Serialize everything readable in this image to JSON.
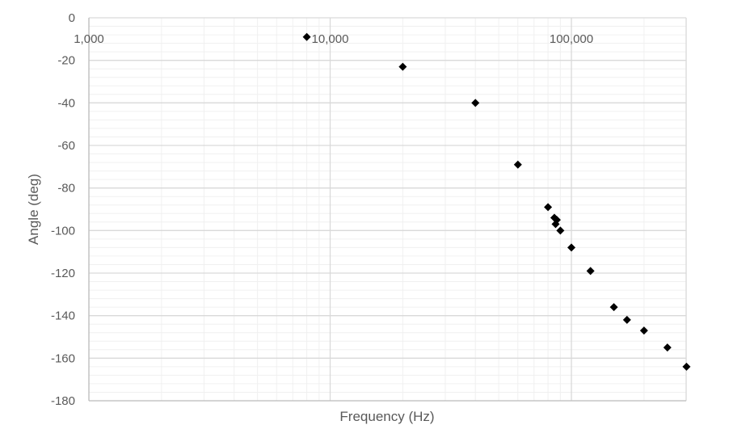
{
  "chart_data": {
    "type": "scatter",
    "title": "",
    "xlabel": "Frequency (Hz)",
    "ylabel": "Angle (deg)",
    "x_scale": "log",
    "xlim": [
      1000,
      250000
    ],
    "ylim": [
      -180,
      0
    ],
    "y_major_step": 20,
    "y_minor_step": 4,
    "x_tick_labels": [
      "1,000",
      "10,000",
      "100,000"
    ],
    "y_tick_labels": [
      "0",
      "-20",
      "-40",
      "-60",
      "-80",
      "-100",
      "-120",
      "-140",
      "-160",
      "-180"
    ],
    "grid": true,
    "legend": "none",
    "marker": "diamond",
    "colors": {
      "marker": "#000000",
      "major_grid": "#d9d9d9",
      "minor_grid": "#f0f0f0",
      "text": "#595959"
    },
    "series": [
      {
        "x": [
          8000,
          20000,
          40000,
          60000,
          80000,
          85000,
          87000,
          86000,
          90000,
          100000,
          120000,
          150000,
          170000,
          200000,
          250000,
          300000
        ],
        "y": [
          -9,
          -23,
          -40,
          -69,
          -89,
          -94,
          -95,
          -97,
          -100,
          -108,
          -119,
          -136,
          -142,
          -147,
          -155,
          -164
        ]
      }
    ]
  }
}
